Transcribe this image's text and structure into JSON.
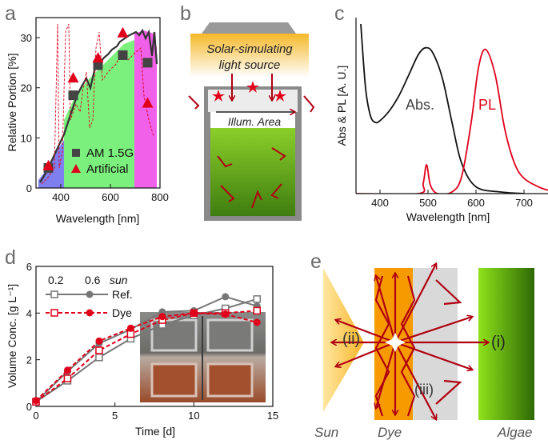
{
  "panels": {
    "a": "a",
    "b": "b",
    "c": "c",
    "d": "d",
    "e": "e"
  },
  "colors": {
    "red": "#e0001a",
    "gray": "#666666",
    "green_band": "#7cf07c",
    "blue_band": "#7f7ff0",
    "magenta_band": "#f060e8",
    "algae": "#6fbf1c",
    "dye": "#f79a00"
  },
  "chart_data": [
    {
      "id": "a",
      "type": "scatter",
      "xlabel": "Wavelength [nm]",
      "ylabel": "Relative Portion [%]",
      "xlim": [
        300,
        800
      ],
      "ylim": [
        0,
        34
      ],
      "xticks": [
        400,
        600,
        800
      ],
      "yticks": [
        0,
        10,
        20,
        30
      ],
      "series": [
        {
          "name": "AM 1.5G",
          "marker": "square",
          "x": [
            350,
            450,
            550,
            650,
            750
          ],
          "y": [
            4,
            18.5,
            24.5,
            26.5,
            25
          ]
        },
        {
          "name": "Artificial",
          "marker": "triangle",
          "x": [
            350,
            450,
            550,
            650,
            750
          ],
          "y": [
            4.5,
            22,
            26,
            31,
            17
          ]
        }
      ]
    },
    {
      "id": "c",
      "type": "line",
      "xlabel": "Wavelength [nm]",
      "ylabel": "Abs & PL [A. U.]",
      "xlim": [
        350,
        750
      ],
      "xticks": [
        400,
        500,
        600,
        700
      ],
      "series": [
        {
          "name": "Abs.",
          "color": "#111111",
          "x": [
            360,
            370,
            380,
            390,
            400,
            420,
            440,
            460,
            480,
            495,
            510,
            530,
            550,
            570,
            600,
            650,
            700
          ],
          "y": [
            1.0,
            0.62,
            0.46,
            0.42,
            0.43,
            0.49,
            0.58,
            0.7,
            0.82,
            0.86,
            0.83,
            0.68,
            0.42,
            0.18,
            0.04,
            0.01,
            0.0
          ]
        },
        {
          "name": "PL",
          "color": "#e0001a",
          "x": [
            350,
            480,
            490,
            497,
            505,
            520,
            550,
            570,
            590,
            605,
            620,
            640,
            660,
            680,
            700,
            730,
            750
          ],
          "y": [
            0.0,
            0.0,
            0.06,
            0.17,
            0.05,
            0.0,
            0.01,
            0.1,
            0.42,
            0.74,
            0.85,
            0.7,
            0.38,
            0.18,
            0.09,
            0.04,
            0.02
          ]
        }
      ]
    },
    {
      "id": "d",
      "type": "line",
      "xlabel": "Time [d]",
      "ylabel": "Volume Conc. [g L⁻¹]",
      "xlim": [
        0,
        15
      ],
      "ylim": [
        0,
        6
      ],
      "xticks": [
        0,
        5,
        10,
        15
      ],
      "yticks": [
        0,
        2,
        4,
        6
      ],
      "legend": {
        "col1": "0.2",
        "col2": "0.6",
        "unit": "sun",
        "ref": "Ref.",
        "dye": "Dye"
      },
      "series": [
        {
          "name": "Ref. 0.2 sun",
          "x": [
            0,
            2,
            4,
            6,
            8,
            10,
            12,
            14
          ],
          "y": [
            0.2,
            1.1,
            2.1,
            2.9,
            3.5,
            3.9,
            4.2,
            4.6
          ]
        },
        {
          "name": "Ref. 0.6 sun",
          "x": [
            0,
            2,
            4,
            6,
            8,
            10,
            12,
            14
          ],
          "y": [
            0.2,
            1.5,
            2.7,
            3.3,
            4.05,
            4.1,
            4.7,
            4.3
          ]
        },
        {
          "name": "Dye 0.2 sun",
          "x": [
            0,
            2,
            4,
            6,
            8,
            10,
            12,
            14
          ],
          "y": [
            0.2,
            1.2,
            2.4,
            3.1,
            3.7,
            4.0,
            4.0,
            4.1
          ]
        },
        {
          "name": "Dye 0.6 sun",
          "x": [
            0,
            2,
            4,
            6,
            8,
            10,
            12,
            14
          ],
          "y": [
            0.25,
            1.55,
            2.8,
            3.35,
            3.85,
            4.0,
            3.95,
            3.6
          ]
        }
      ]
    }
  ],
  "panel_a_legend": {
    "am": "AM 1.5G",
    "art": "Artificial"
  },
  "panel_b": {
    "source_line1": "Solar-simulating",
    "source_line2": "light source",
    "area_label": "Illum.  Area"
  },
  "panel_c_labels": {
    "abs": "Abs.",
    "pl": "PL"
  },
  "panel_e": {
    "label_i": "(i)",
    "label_ii": "(ii)",
    "label_iii": "(iii)",
    "sun": "Sun",
    "dye": "Dye",
    "algae": "Algae"
  }
}
